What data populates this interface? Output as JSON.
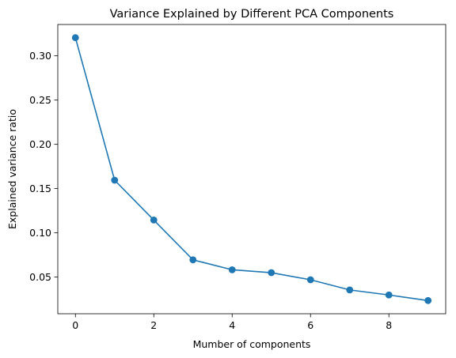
{
  "chart_data": {
    "type": "line",
    "title": "Variance Explained by Different PCA Components",
    "xlabel": "Mumber of components",
    "ylabel": "Explained variance ratio",
    "x": [
      0,
      1,
      2,
      3,
      4,
      5,
      6,
      7,
      8,
      9
    ],
    "series": [
      {
        "values": [
          0.3205,
          0.1595,
          0.1145,
          0.0695,
          0.0583,
          0.055,
          0.047,
          0.0355,
          0.0298,
          0.0235
        ],
        "color": "#1f77b4",
        "marker": "circle"
      }
    ],
    "xlim": [
      -0.45,
      9.45
    ],
    "ylim": [
      0.0086,
      0.3354
    ],
    "xticks": [
      0,
      2,
      4,
      6,
      8
    ],
    "xtick_labels": [
      "0",
      "2",
      "4",
      "6",
      "8"
    ],
    "yticks": [
      0.05,
      0.1,
      0.15,
      0.2,
      0.25,
      0.3
    ],
    "ytick_labels": [
      "0.05",
      "0.10",
      "0.15",
      "0.20",
      "0.25",
      "0.30"
    ],
    "grid": false,
    "legend": "none"
  }
}
